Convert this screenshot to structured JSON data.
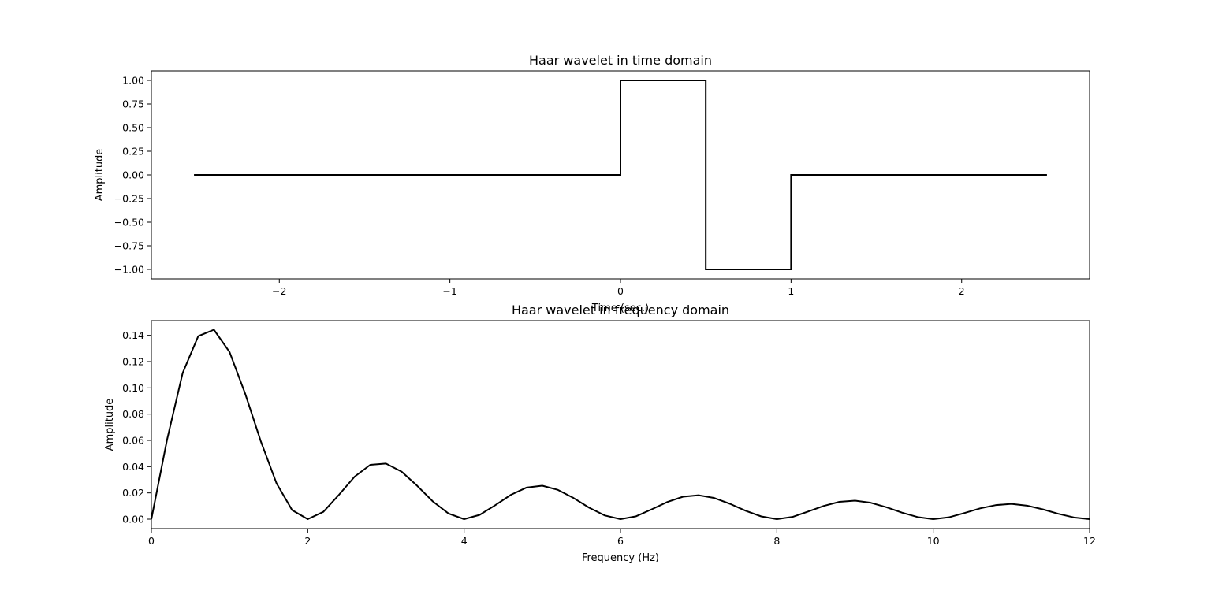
{
  "chart_data": [
    {
      "type": "line",
      "title": "Haar wavelet in time domain",
      "xlabel": "Time (sec.)",
      "ylabel": "Amplitude",
      "xlim": [
        -2.75,
        2.75
      ],
      "ylim": [
        -1.1,
        1.1
      ],
      "xticks": [
        -2,
        -1,
        0,
        1,
        2
      ],
      "xtick_labels": [
        "−2",
        "−1",
        "0",
        "1",
        "2"
      ],
      "yticks": [
        1.0,
        0.75,
        0.5,
        0.25,
        0.0,
        -0.25,
        -0.5,
        -0.75,
        -1.0
      ],
      "ytick_labels": [
        "1.00",
        "0.75",
        "0.50",
        "0.25",
        "0.00",
        "−0.25",
        "−0.50",
        "−0.75",
        "−1.00"
      ],
      "grid": false,
      "line_color": "#000000",
      "series": [
        {
          "x": [
            -2.5,
            0.0,
            0.0,
            0.5,
            0.5,
            1.0,
            1.0,
            2.5
          ],
          "y": [
            0,
            0,
            1,
            1,
            -1,
            -1,
            0,
            0
          ]
        }
      ]
    },
    {
      "type": "line",
      "title": "Haar wavelet in frequency domain",
      "xlabel": "Frequency (Hz)",
      "ylabel": "Amplitude",
      "xlim": [
        0,
        12
      ],
      "ylim": [
        -0.0072,
        0.1512
      ],
      "xticks": [
        0,
        2,
        4,
        6,
        8,
        10,
        12
      ],
      "xtick_labels": [
        "0",
        "2",
        "4",
        "6",
        "8",
        "10",
        "12"
      ],
      "yticks": [
        0.14,
        0.12,
        0.1,
        0.08,
        0.06,
        0.04,
        0.02,
        0.0
      ],
      "ytick_labels": [
        "0.14",
        "0.12",
        "0.10",
        "0.08",
        "0.06",
        "0.04",
        "0.02",
        "0.00"
      ],
      "grid": false,
      "line_color": "#000000",
      "series": [
        {
          "x": [
            0,
            0.2,
            0.4,
            0.6,
            0.8,
            1.0,
            1.2,
            1.4,
            1.6,
            1.8,
            2.0,
            2.2,
            2.4,
            2.6,
            2.8,
            3.0,
            3.2,
            3.4,
            3.6,
            3.8,
            4.0,
            4.2,
            4.4,
            4.6,
            4.8,
            5.0,
            5.2,
            5.4,
            5.6,
            5.8,
            6.0,
            6.2,
            6.4,
            6.6,
            6.8,
            7.0,
            7.2,
            7.4,
            7.6,
            7.8,
            8.0,
            8.2,
            8.4,
            8.6,
            8.8,
            9.0,
            9.2,
            9.4,
            9.6,
            9.8,
            10.0,
            10.2,
            10.4,
            10.6,
            10.8,
            11.0,
            11.2,
            11.4,
            11.6,
            11.8,
            12.0
          ],
          "y": [
            0.0,
            0.0603,
            0.1113,
            0.1394,
            0.1443,
            0.1273,
            0.0956,
            0.0593,
            0.0274,
            0.0069,
            0.0,
            0.0056,
            0.0186,
            0.0324,
            0.0414,
            0.0424,
            0.0362,
            0.0254,
            0.0135,
            0.0043,
            0.0,
            0.0033,
            0.0107,
            0.0186,
            0.0241,
            0.0255,
            0.0223,
            0.0161,
            0.0087,
            0.0028,
            0.0,
            0.0022,
            0.0075,
            0.0131,
            0.0171,
            0.0182,
            0.0161,
            0.0117,
            0.0064,
            0.0021,
            0.0,
            0.0017,
            0.0058,
            0.0101,
            0.0132,
            0.0141,
            0.0125,
            0.0091,
            0.005,
            0.0016,
            0.0,
            0.0014,
            0.0047,
            0.0082,
            0.0107,
            0.0116,
            0.0103,
            0.0075,
            0.0041,
            0.0013,
            0.0
          ]
        }
      ]
    }
  ]
}
